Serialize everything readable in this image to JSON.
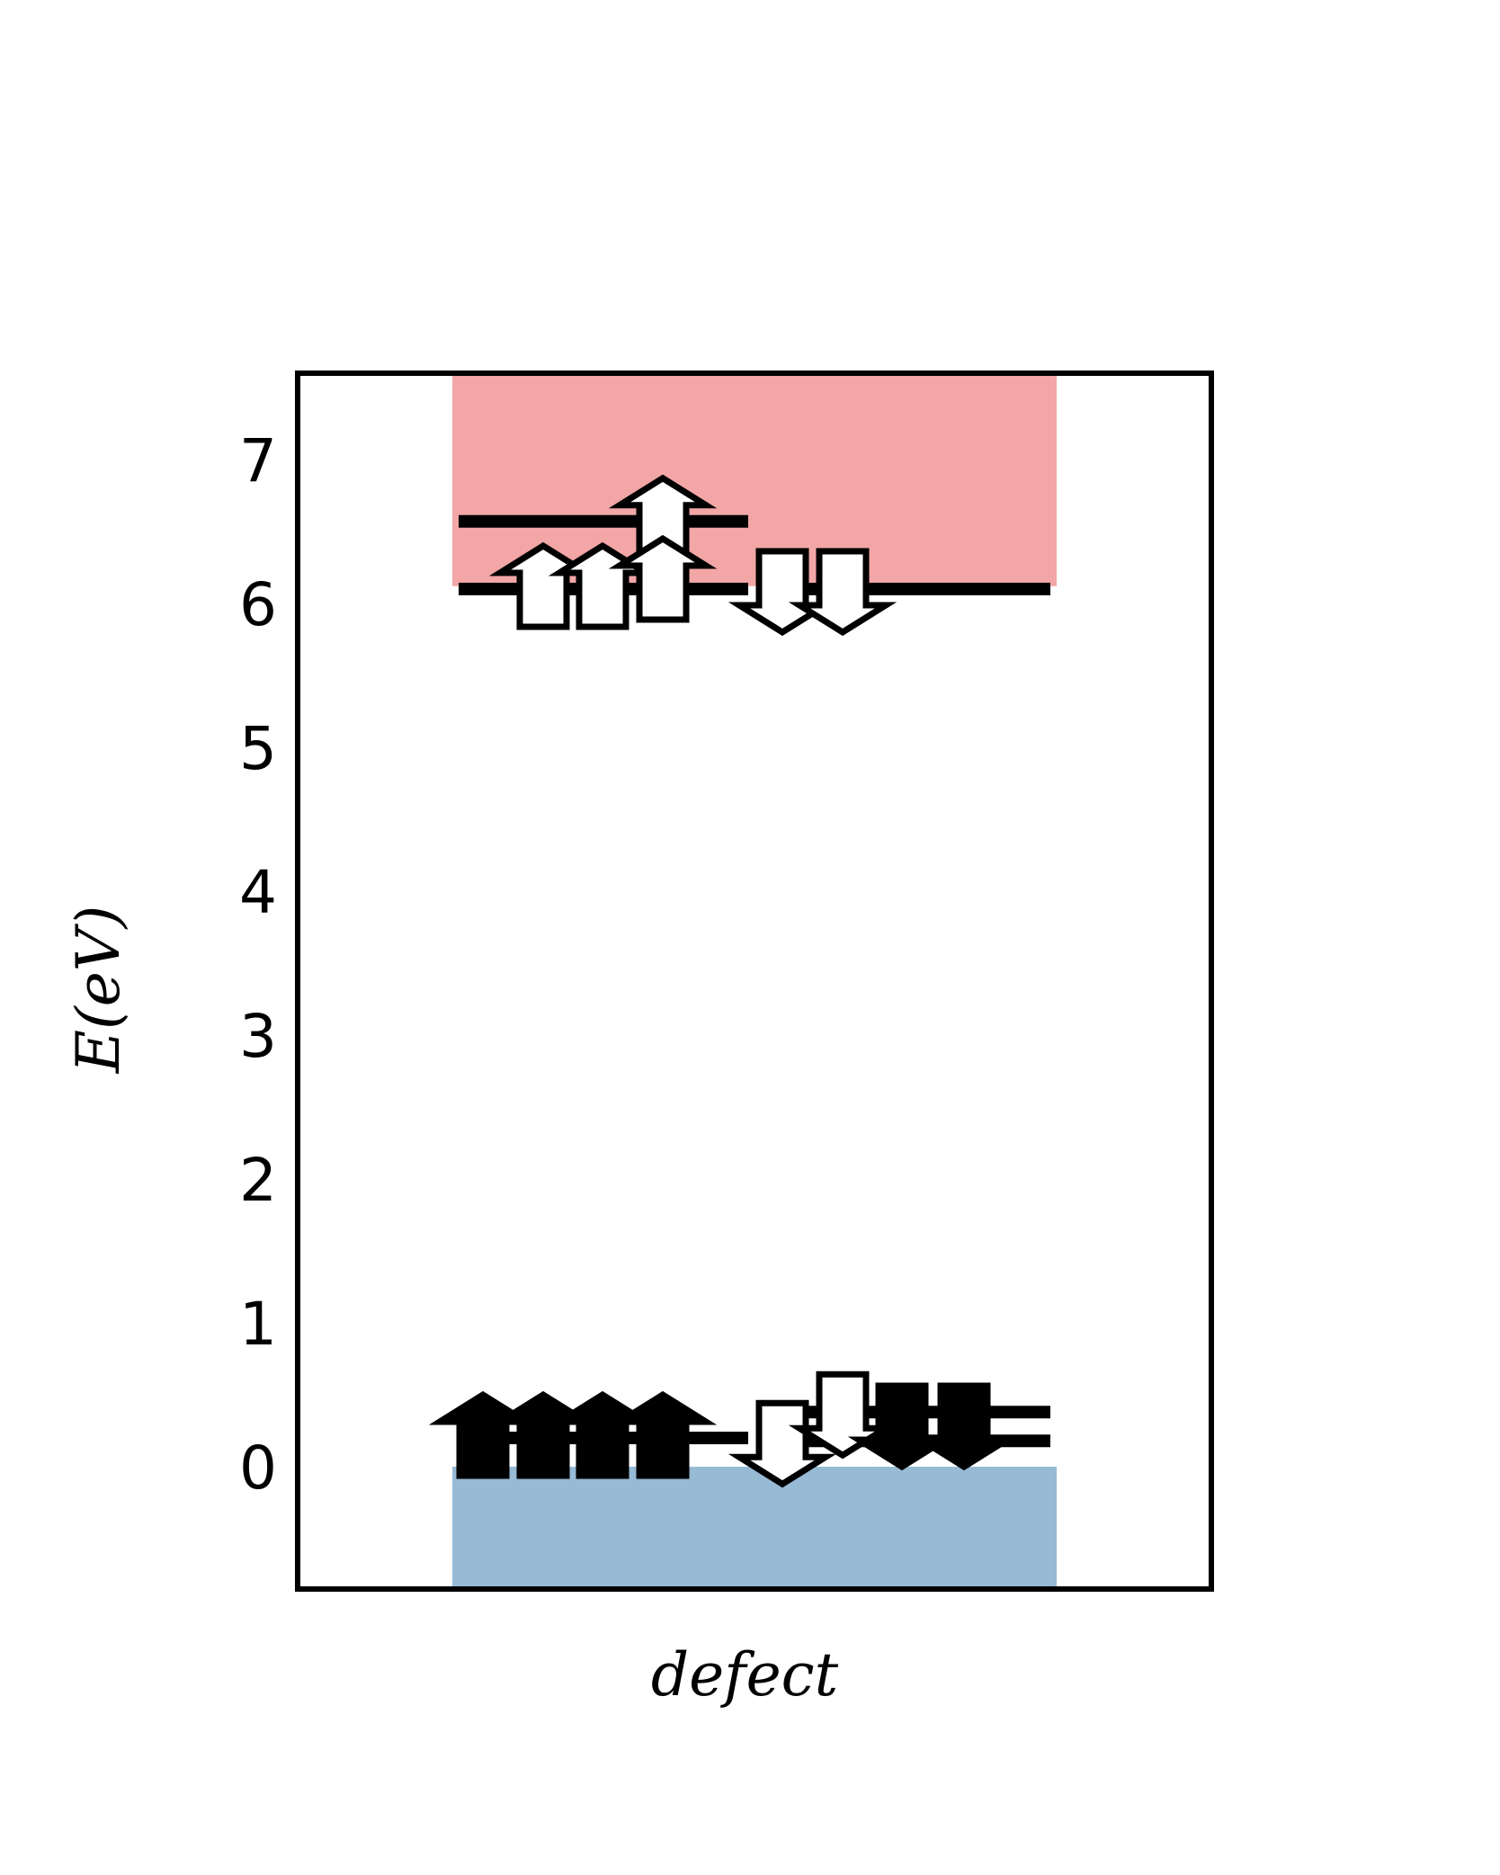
{
  "chart_data": {
    "type": "energy-level",
    "title": "",
    "xlabel": "defect",
    "ylabel": "E(eV)",
    "ylim": [
      -0.85,
      7.6
    ],
    "yticks": [
      0,
      1,
      2,
      3,
      4,
      5,
      6,
      7
    ],
    "grid": false,
    "legend": "none",
    "bands": [
      {
        "name": "valence band",
        "from": -0.85,
        "to": 0.0,
        "color": "#97bad5"
      },
      {
        "name": "conduction band",
        "from": 6.12,
        "to": 7.6,
        "color": "#f2a6a6"
      }
    ],
    "levels": {
      "spin_up": [
        {
          "energy": 6.57,
          "occupied": false
        },
        {
          "energy": 6.1,
          "occupied": false
        },
        {
          "energy": 0.2,
          "occupied": true
        }
      ],
      "spin_down": [
        {
          "energy": 6.1,
          "occupied": false
        },
        {
          "energy": 0.18,
          "occupied": true
        },
        {
          "energy": 0.38,
          "occupied": true
        }
      ]
    },
    "arrows": [
      {
        "spin": "up",
        "energy": 6.57,
        "filled": false
      },
      {
        "spin": "up",
        "energy": 6.1,
        "filled": false
      },
      {
        "spin": "up",
        "energy": 6.1,
        "filled": false
      },
      {
        "spin": "up",
        "energy": 6.15,
        "filled": false
      },
      {
        "spin": "down",
        "energy": 6.1,
        "filled": false
      },
      {
        "spin": "down",
        "energy": 6.1,
        "filled": false
      },
      {
        "spin": "up",
        "energy": 0.2,
        "filled": true
      },
      {
        "spin": "up",
        "energy": 0.2,
        "filled": true
      },
      {
        "spin": "up",
        "energy": 0.2,
        "filled": true
      },
      {
        "spin": "up",
        "energy": 0.2,
        "filled": true
      },
      {
        "spin": "down",
        "energy": 0.18,
        "filled": false
      },
      {
        "spin": "down",
        "energy": 0.38,
        "filled": false
      },
      {
        "spin": "down",
        "energy": 0.3,
        "filled": true
      },
      {
        "spin": "down",
        "energy": 0.3,
        "filled": true
      }
    ],
    "colors": {
      "frame": "#000000",
      "level": "#000000",
      "arrow_fill": "#ffffff",
      "arrow_filled": "#000000"
    }
  }
}
